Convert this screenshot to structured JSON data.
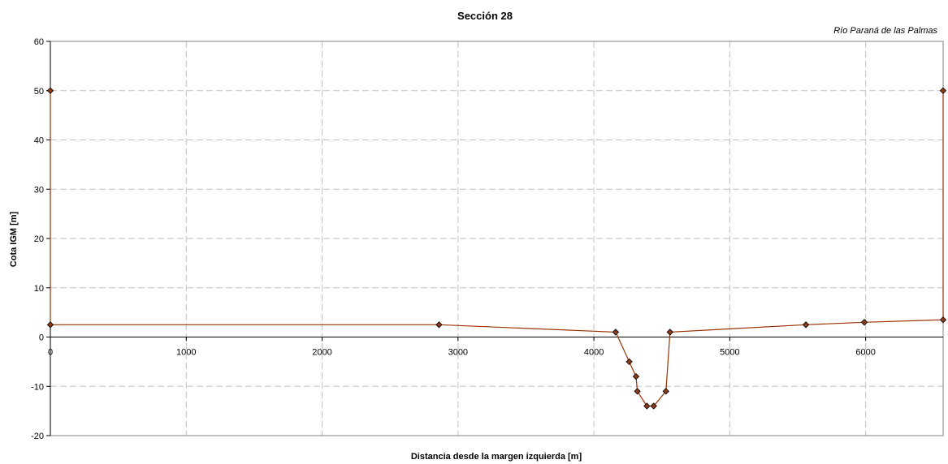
{
  "chart_data": {
    "type": "line",
    "title": "Sección 28",
    "subtitle": "Río Paraná de las Palmas",
    "xlabel": "Distancia desde la margen izquierda [m]",
    "ylabel": "Cota IGM [m]",
    "xlim": [
      0,
      6570
    ],
    "ylim": [
      -20,
      60
    ],
    "xticks": [
      0,
      1000,
      2000,
      3000,
      4000,
      5000,
      6000
    ],
    "yticks": [
      -20,
      -10,
      0,
      10,
      20,
      30,
      40,
      50,
      60
    ],
    "grid": true,
    "legend": "none",
    "series": [
      {
        "color": "#993300",
        "marker_color": "#8B3A1A",
        "points": [
          [
            0,
            50
          ],
          [
            0,
            2.5
          ],
          [
            2860,
            2.5
          ],
          [
            4160,
            1.0
          ],
          [
            4260,
            -5.0
          ],
          [
            4310,
            -8.0
          ],
          [
            4320,
            -11.0
          ],
          [
            4390,
            -14.0
          ],
          [
            4440,
            -14.0
          ],
          [
            4530,
            -11.0
          ],
          [
            4560,
            1.0
          ],
          [
            5560,
            2.5
          ],
          [
            5990,
            3.0
          ],
          [
            6570,
            3.5
          ],
          [
            6570,
            50
          ]
        ]
      }
    ]
  }
}
